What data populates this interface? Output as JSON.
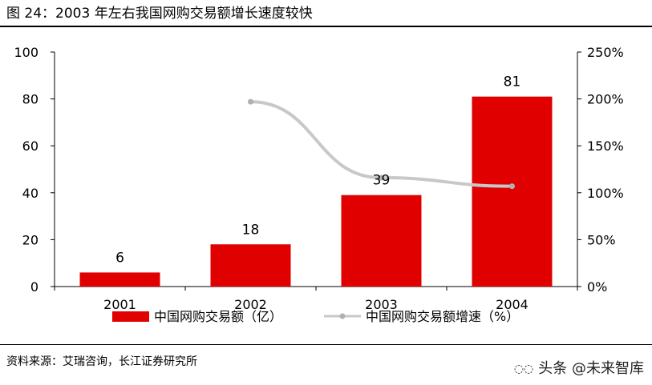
{
  "title": "图 24：2003 年左右我国网购交易额增长速度较快",
  "source": "资料来源：艾瑞咨询，长江证券研究所",
  "watermark": "头条 @未来智库",
  "chart_data": {
    "type": "bar",
    "categories": [
      "2001",
      "2002",
      "2003",
      "2004"
    ],
    "series": [
      {
        "name": "中国网购交易额（亿）",
        "type": "bar",
        "axis": "left",
        "values": [
          6,
          18,
          39,
          81
        ],
        "color": "#e00000"
      },
      {
        "name": "中国网购交易额增速（%）",
        "type": "line",
        "axis": "right",
        "values": [
          null,
          197,
          116,
          107
        ],
        "color": "#c8c8c8"
      }
    ],
    "data_labels": [
      "6",
      "18",
      "39",
      "81"
    ],
    "y_left": {
      "min": 0,
      "max": 100,
      "ticks": [
        "0",
        "20",
        "40",
        "60",
        "80",
        "100"
      ]
    },
    "y_right": {
      "min": 0,
      "max": 250,
      "ticks": [
        "0%",
        "50%",
        "100%",
        "150%",
        "200%",
        "250%"
      ]
    },
    "legend_position": "bottom",
    "grid": false
  }
}
